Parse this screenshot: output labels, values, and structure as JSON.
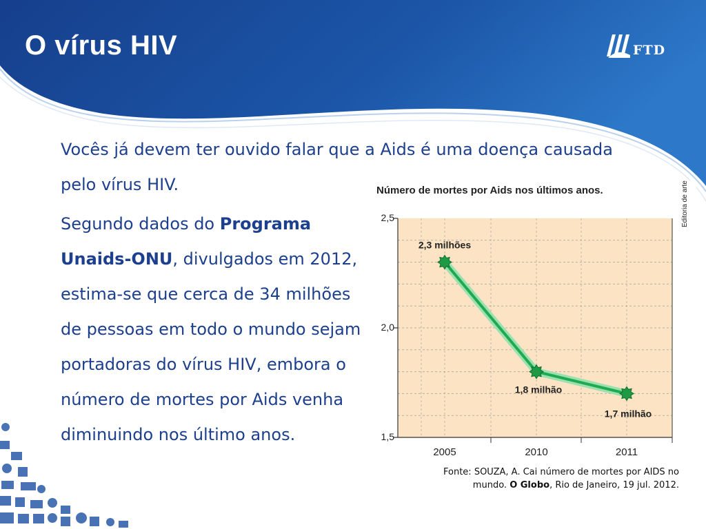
{
  "slide": {
    "title": "O vírus HIV",
    "logo_text": "FTD"
  },
  "body": {
    "p1": "Vocês já devem ter ouvido falar que a Aids é uma doença causada pelo vírus HIV.",
    "p2_pre": "Segundo dados do ",
    "p2_bold": "Programa Unaids-ONU",
    "p2_post": ", divulgados em 2012, estima-se que cerca de 34 milhões de pessoas em todo o mundo sejam portadoras do vírus HIV, embora o número de mortes por Aids venha diminuindo nos último anos."
  },
  "chart_data": {
    "type": "line",
    "title": "Número de mortes por Aids nos últimos anos.",
    "credit": "Editoria de arte",
    "categories": [
      "2005",
      "2010",
      "2011"
    ],
    "values": [
      2.3,
      1.8,
      1.7
    ],
    "data_labels": [
      "2,3 milhões",
      "1,8 milhão",
      "1,7 milhão"
    ],
    "y_ticks": [
      "2,5",
      "2,0",
      "1,5"
    ],
    "ylim": [
      1.5,
      2.5
    ],
    "grid": true,
    "colors": {
      "line": "#1faa4f",
      "marker": "#1f9a44",
      "plot_bg": "#fbe3c4",
      "grid": "#9a9a9a"
    }
  },
  "source": {
    "pre": "Fonte: SOUZA, A. Cai número de mortes por AIDS no mundo. ",
    "bold": "O Globo",
    "post": ", Rio de Janeiro, 19 jul. 2012."
  },
  "theme": {
    "header_blue": "#1b4fa0",
    "text_blue": "#1c3f8e"
  }
}
